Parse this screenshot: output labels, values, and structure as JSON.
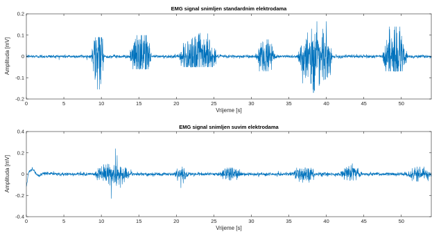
{
  "colors": {
    "signal": "#0072BD",
    "axis": "#262626",
    "background": "#FFFFFF"
  },
  "chart_data": [
    {
      "type": "line",
      "title": "EMG signal snimljen standardnim elektrodama",
      "xlabel": "Vrijeme [s]",
      "ylabel": "Amplituda [mV]",
      "xlim": [
        0,
        54
      ],
      "ylim": [
        -0.2,
        0.2
      ],
      "xticks": [
        "0",
        "5",
        "10",
        "15",
        "20",
        "25",
        "30",
        "35",
        "40",
        "45",
        "50"
      ],
      "yticks": [
        "-0.2",
        "-0.1",
        "0",
        "0.1",
        "0.2"
      ],
      "xtick_values": [
        0,
        5,
        10,
        15,
        20,
        25,
        30,
        35,
        40,
        45,
        50
      ],
      "ytick_values": [
        -0.2,
        -0.1,
        0,
        0.1,
        0.2
      ],
      "grid": false,
      "baseline": {
        "level": 0.0,
        "noise": 0.004
      },
      "bursts": [
        {
          "start": 8.7,
          "end": 10.4,
          "amplitude": 0.07,
          "peak_min": -0.155,
          "peak_max": 0.09
        },
        {
          "start": 13.8,
          "end": 16.7,
          "amplitude": 0.06,
          "peak_min": -0.06,
          "peak_max": 0.1
        },
        {
          "start": 20.4,
          "end": 25.4,
          "amplitude": 0.06,
          "peak_min": -0.05,
          "peak_max": 0.11
        },
        {
          "start": 30.7,
          "end": 33.2,
          "amplitude": 0.05,
          "peak_min": -0.07,
          "peak_max": 0.08
        },
        {
          "start": 36.2,
          "end": 40.8,
          "amplitude": 0.08,
          "peak_min": -0.17,
          "peak_max": 0.165
        },
        {
          "start": 47.5,
          "end": 50.8,
          "amplitude": 0.07,
          "peak_min": -0.07,
          "peak_max": 0.14
        }
      ]
    },
    {
      "type": "line",
      "title": "EMG signal snimljen suvim elektrodama",
      "xlabel": "Vrijeme [s]",
      "ylabel": "Amplituda [mV]",
      "xlim": [
        0,
        54
      ],
      "ylim": [
        -0.4,
        0.4
      ],
      "xticks": [
        "0",
        "5",
        "10",
        "15",
        "20",
        "25",
        "30",
        "35",
        "40",
        "45",
        "50"
      ],
      "yticks": [
        "-0.4",
        "-0.2",
        "0",
        "0.2",
        "0.4"
      ],
      "xtick_values": [
        0,
        5,
        10,
        15,
        20,
        25,
        30,
        35,
        40,
        45,
        50
      ],
      "ytick_values": [
        -0.4,
        -0.2,
        0,
        0.2,
        0.4
      ],
      "grid": false,
      "baseline": {
        "level": 0.0,
        "noise": 0.008
      },
      "onset_transient": [
        {
          "x": 0.0,
          "y": -0.12
        },
        {
          "x": 0.3,
          "y": 0.02
        },
        {
          "x": 0.8,
          "y": 0.05
        },
        {
          "x": 1.6,
          "y": -0.02
        },
        {
          "x": 2.6,
          "y": 0.01
        },
        {
          "x": 4.0,
          "y": 0.0
        }
      ],
      "bursts": [
        {
          "start": 9.0,
          "end": 14.2,
          "amplitude": 0.05,
          "peak_min": -0.23,
          "peak_max": 0.24
        },
        {
          "start": 19.8,
          "end": 21.6,
          "amplitude": 0.035,
          "peak_min": -0.13,
          "peak_max": 0.07
        },
        {
          "start": 25.8,
          "end": 28.8,
          "amplitude": 0.035,
          "peak_min": -0.06,
          "peak_max": 0.06
        },
        {
          "start": 35.4,
          "end": 38.6,
          "amplitude": 0.04,
          "peak_min": -0.08,
          "peak_max": 0.06
        },
        {
          "start": 41.8,
          "end": 44.8,
          "amplitude": 0.04,
          "peak_min": -0.06,
          "peak_max": 0.1
        },
        {
          "start": 50.6,
          "end": 54.0,
          "amplitude": 0.035,
          "peak_min": -0.07,
          "peak_max": 0.07
        }
      ]
    }
  ]
}
